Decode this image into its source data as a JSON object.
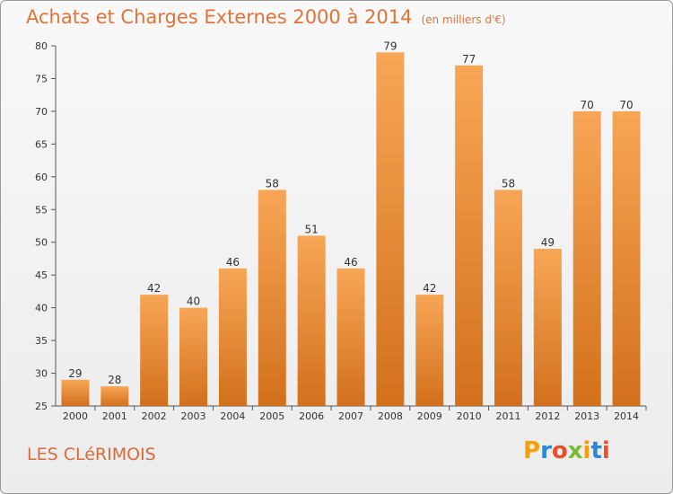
{
  "header": {
    "title": "Achats et Charges Externes 2000 à 2014",
    "unit": "(en milliers d'€)"
  },
  "footer": {
    "commune": "LES CLéRIMOIS",
    "brand": "Proxiti"
  },
  "colors": {
    "bar_top": "#f7a656",
    "bar_bottom": "#d2701c",
    "title": "#e0733a",
    "brand": [
      "#f5a000",
      "#2b87d8",
      "#e94e2a",
      "#7cb935",
      "#f5a000",
      "#2b87d8",
      "#e94e2a"
    ]
  },
  "chart_data": {
    "type": "bar",
    "title": "Achats et Charges Externes 2000 à 2014",
    "categories": [
      "2000",
      "2001",
      "2002",
      "2003",
      "2004",
      "2005",
      "2006",
      "2007",
      "2008",
      "2009",
      "2010",
      "2011",
      "2012",
      "2013",
      "2014"
    ],
    "values": [
      29,
      28,
      42,
      40,
      46,
      58,
      51,
      46,
      79,
      42,
      77,
      58,
      49,
      70,
      70
    ],
    "ylim": [
      25,
      80
    ],
    "yticks": [
      25,
      30,
      35,
      40,
      45,
      50,
      55,
      60,
      65,
      70,
      75,
      80
    ],
    "grid": false,
    "xlabel": "",
    "ylabel": ""
  }
}
